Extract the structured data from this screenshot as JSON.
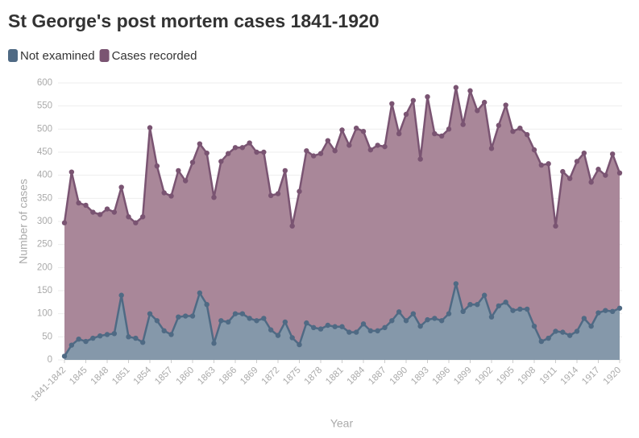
{
  "chart_data": {
    "type": "area",
    "title": "St George's post mortem cases 1841-1920",
    "x_label": "Year",
    "y_label": "Number of cases",
    "categories": [
      "1841-1842",
      null,
      null,
      "1845",
      null,
      null,
      "1848",
      null,
      null,
      "1851",
      null,
      null,
      "1854",
      null,
      null,
      "1857",
      null,
      null,
      "1860",
      null,
      null,
      "1863",
      null,
      null,
      "1866",
      null,
      null,
      "1869",
      null,
      null,
      "1872",
      null,
      null,
      "1875",
      null,
      null,
      "1878",
      null,
      null,
      "1881",
      null,
      null,
      "1884",
      null,
      null,
      "1887",
      null,
      null,
      "1890",
      null,
      null,
      "1893",
      null,
      null,
      "1896",
      null,
      null,
      "1899",
      null,
      null,
      "1902",
      null,
      null,
      "1905",
      null,
      null,
      "1908",
      null,
      null,
      "1911",
      null,
      null,
      "1914",
      null,
      null,
      "1917",
      null,
      null,
      "1920"
    ],
    "series": [
      {
        "name": "Not examined",
        "color": "#4f6a84",
        "fill": "#8598aa",
        "values": [
          8,
          32,
          45,
          40,
          47,
          52,
          55,
          57,
          140,
          50,
          47,
          38,
          100,
          85,
          63,
          55,
          93,
          95,
          95,
          145,
          120,
          36,
          85,
          82,
          100,
          100,
          90,
          85,
          90,
          65,
          53,
          82,
          48,
          33,
          80,
          70,
          67,
          75,
          72,
          72,
          60,
          60,
          78,
          63,
          63,
          70,
          85,
          104,
          85,
          100,
          73,
          87,
          90,
          85,
          100,
          165,
          105,
          120,
          120,
          140,
          93,
          117,
          125,
          107,
          110,
          110,
          73,
          40,
          47,
          62,
          60,
          53,
          62,
          90,
          73,
          102,
          107,
          105,
          112
        ]
      },
      {
        "name": "Cases recorded",
        "color": "#7a5472",
        "fill": "#a98799",
        "values": [
          297,
          407,
          340,
          335,
          320,
          315,
          327,
          320,
          374,
          310,
          297,
          310,
          503,
          420,
          362,
          355,
          410,
          388,
          428,
          468,
          448,
          352,
          430,
          447,
          460,
          460,
          470,
          450,
          450,
          356,
          360,
          410,
          290,
          365,
          453,
          442,
          447,
          475,
          453,
          498,
          465,
          502,
          495,
          455,
          465,
          462,
          555,
          490,
          532,
          562,
          435,
          570,
          490,
          485,
          500,
          590,
          510,
          583,
          540,
          558,
          458,
          508,
          552,
          495,
          502,
          488,
          455,
          422,
          425,
          290,
          408,
          393,
          430,
          448,
          385,
          413,
          400,
          446,
          405
        ]
      }
    ],
    "ylim": [
      0,
      600
    ],
    "yticks": [
      0,
      50,
      100,
      150,
      200,
      250,
      300,
      350,
      400,
      450,
      500,
      550,
      600
    ],
    "grid": true
  }
}
